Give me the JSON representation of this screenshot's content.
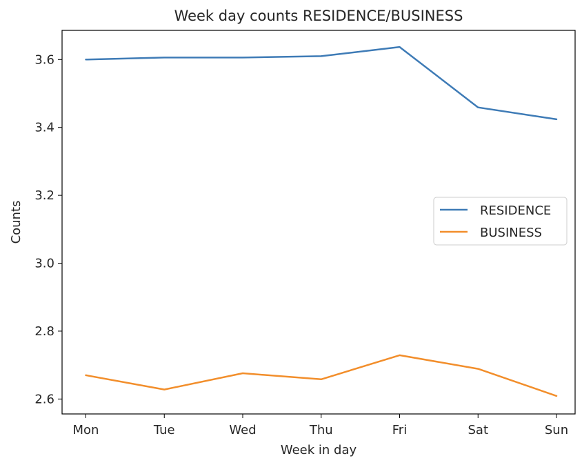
{
  "chart_data": {
    "type": "line",
    "title": "Week day counts RESIDENCE/BUSINESS",
    "xlabel": "Week in day",
    "ylabel": "Counts",
    "categories": [
      "Mon",
      "Tue",
      "Wed",
      "Thu",
      "Fri",
      "Sat",
      "Sun"
    ],
    "ylim": [
      2.556,
      3.686
    ],
    "yticks": [
      "2.6",
      "2.8",
      "3.0",
      "3.2",
      "3.4",
      "3.6"
    ],
    "series": [
      {
        "name": "RESIDENCE",
        "color": "#3e7bb6",
        "values": [
          3.6,
          3.606,
          3.606,
          3.61,
          3.637,
          3.459,
          3.424
        ]
      },
      {
        "name": "BUSINESS",
        "color": "#f28e2b",
        "values": [
          2.67,
          2.628,
          2.676,
          2.658,
          2.729,
          2.689,
          2.609
        ]
      }
    ],
    "grid": false,
    "legend_position": "center-right"
  }
}
